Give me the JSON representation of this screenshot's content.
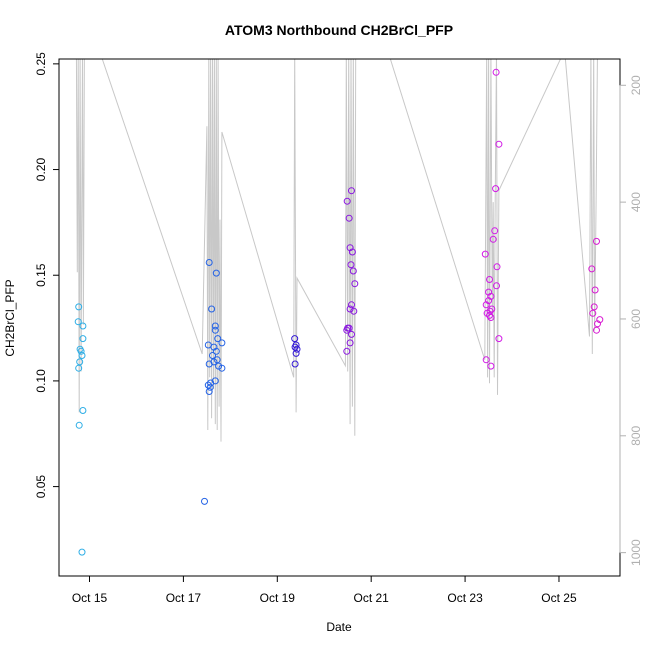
{
  "chart_data": {
    "type": "scatter",
    "title": "ATOM3 Northbound CH2BrCl_PFP",
    "xlabel": "Date",
    "ylabel": "CH2BrCl_PFP",
    "x_unit": "day of October",
    "xlim": [
      14.35,
      26.3
    ],
    "ylim": [
      0.0077,
      0.2523
    ],
    "x_ticks": [
      15,
      17,
      19,
      21,
      23,
      25
    ],
    "x_tick_labels": [
      "Oct 15",
      "Oct 17",
      "Oct 19",
      "Oct 21",
      "Oct 23",
      "Oct 25"
    ],
    "y_ticks": [
      0.05,
      0.1,
      0.15,
      0.2,
      0.25
    ],
    "y_tick_labels": [
      "0.05",
      "0.10",
      "0.15",
      "0.20",
      "0.25"
    ],
    "y2_ticks": [
      200,
      400,
      600,
      800,
      1000
    ],
    "y2_tick_labels": [
      "200",
      "400",
      "600",
      "800",
      "1000"
    ],
    "y2lim": [
      1040,
      155
    ],
    "y2_reversed": true,
    "grid": false,
    "colors": {
      "flight1": "#2eaee6",
      "flight2": "#2463e6",
      "flight3": "#3216d6",
      "flight4": "#8a16e0",
      "flight5": "#d21ae6",
      "flight6": "#d81ad2",
      "profile_line": "#c8c8c8",
      "right_axis": "#b0b0b0"
    },
    "series": [
      {
        "points": [
          [
            14.77,
            0.135
          ],
          [
            14.76,
            0.128
          ],
          [
            14.8,
            0.115
          ],
          [
            14.82,
            0.114
          ],
          [
            14.79,
            0.109
          ],
          [
            14.77,
            0.106
          ],
          [
            14.86,
            0.126
          ],
          [
            14.86,
            0.12
          ],
          [
            14.84,
            0.112
          ],
          [
            14.86,
            0.086
          ],
          [
            14.78,
            0.079
          ],
          [
            14.84,
            0.019
          ]
        ]
      },
      {
        "points": [
          [
            17.55,
            0.156
          ],
          [
            17.6,
            0.134
          ],
          [
            17.7,
            0.151
          ],
          [
            17.68,
            0.126
          ],
          [
            17.68,
            0.124
          ],
          [
            17.73,
            0.12
          ],
          [
            17.82,
            0.118
          ],
          [
            17.53,
            0.117
          ],
          [
            17.65,
            0.116
          ],
          [
            17.7,
            0.114
          ],
          [
            17.62,
            0.112
          ],
          [
            17.72,
            0.11
          ],
          [
            17.55,
            0.108
          ],
          [
            17.65,
            0.109
          ],
          [
            17.75,
            0.107
          ],
          [
            17.82,
            0.106
          ],
          [
            17.68,
            0.1
          ],
          [
            17.58,
            0.099
          ],
          [
            17.53,
            0.098
          ],
          [
            17.57,
            0.097
          ],
          [
            17.55,
            0.095
          ],
          [
            17.45,
            0.043
          ]
        ]
      },
      {
        "points": [
          [
            19.37,
            0.12
          ],
          [
            19.4,
            0.117
          ],
          [
            19.38,
            0.116
          ],
          [
            19.42,
            0.115
          ],
          [
            19.4,
            0.113
          ],
          [
            19.38,
            0.108
          ]
        ]
      },
      {
        "points": [
          [
            20.49,
            0.185
          ],
          [
            20.58,
            0.19
          ],
          [
            20.53,
            0.177
          ],
          [
            20.55,
            0.163
          ],
          [
            20.6,
            0.161
          ],
          [
            20.57,
            0.155
          ],
          [
            20.62,
            0.152
          ],
          [
            20.65,
            0.146
          ],
          [
            20.58,
            0.136
          ],
          [
            20.55,
            0.134
          ],
          [
            20.63,
            0.133
          ],
          [
            20.5,
            0.125
          ],
          [
            20.53,
            0.125
          ],
          [
            20.48,
            0.124
          ],
          [
            20.55,
            0.118
          ],
          [
            20.58,
            0.122
          ],
          [
            20.48,
            0.114
          ]
        ]
      },
      {
        "points": [
          [
            23.66,
            0.246
          ],
          [
            23.72,
            0.212
          ],
          [
            23.65,
            0.191
          ],
          [
            23.63,
            0.171
          ],
          [
            23.6,
            0.167
          ],
          [
            23.68,
            0.154
          ],
          [
            23.43,
            0.16
          ],
          [
            23.52,
            0.148
          ],
          [
            23.67,
            0.145
          ],
          [
            23.5,
            0.142
          ],
          [
            23.55,
            0.14
          ],
          [
            23.45,
            0.136
          ],
          [
            23.5,
            0.138
          ],
          [
            23.47,
            0.132
          ],
          [
            23.57,
            0.134
          ],
          [
            23.53,
            0.133
          ],
          [
            23.52,
            0.131
          ],
          [
            23.55,
            0.13
          ],
          [
            23.72,
            0.12
          ],
          [
            23.45,
            0.11
          ],
          [
            23.55,
            0.107
          ]
        ]
      },
      {
        "points": [
          [
            25.8,
            0.166
          ],
          [
            25.7,
            0.153
          ],
          [
            25.77,
            0.143
          ],
          [
            25.75,
            0.135
          ],
          [
            25.72,
            0.132
          ],
          [
            25.87,
            0.129
          ],
          [
            25.82,
            0.127
          ],
          [
            25.8,
            0.124
          ]
        ]
      }
    ],
    "profile_line_y2": [
      [
        14.72,
        140
      ],
      [
        14.74,
        520
      ],
      [
        14.76,
        140
      ],
      [
        14.78,
        760
      ],
      [
        14.8,
        140
      ],
      [
        14.82,
        690
      ],
      [
        14.85,
        140
      ],
      [
        14.87,
        610
      ],
      [
        14.89,
        140
      ],
      [
        15.25,
        150
      ],
      [
        17.4,
        660
      ],
      [
        17.5,
        270
      ],
      [
        17.52,
        790
      ],
      [
        17.54,
        140
      ],
      [
        17.56,
        700
      ],
      [
        17.58,
        140
      ],
      [
        17.6,
        770
      ],
      [
        17.62,
        140
      ],
      [
        17.64,
        720
      ],
      [
        17.66,
        140
      ],
      [
        17.68,
        780
      ],
      [
        17.7,
        140
      ],
      [
        17.72,
        790
      ],
      [
        17.74,
        150
      ],
      [
        17.76,
        750
      ],
      [
        17.78,
        430
      ],
      [
        17.8,
        810
      ],
      [
        17.82,
        280
      ],
      [
        19.35,
        700
      ],
      [
        19.37,
        140
      ],
      [
        19.4,
        760
      ],
      [
        19.42,
        530
      ],
      [
        20.45,
        680
      ],
      [
        20.47,
        140
      ],
      [
        20.5,
        690
      ],
      [
        20.52,
        140
      ],
      [
        20.55,
        780
      ],
      [
        20.57,
        140
      ],
      [
        20.6,
        750
      ],
      [
        20.62,
        140
      ],
      [
        20.65,
        800
      ],
      [
        20.67,
        140
      ],
      [
        21.35,
        140
      ],
      [
        23.42,
        670
      ],
      [
        23.46,
        140
      ],
      [
        23.48,
        700
      ],
      [
        23.5,
        140
      ],
      [
        23.52,
        710
      ],
      [
        23.55,
        140
      ],
      [
        23.58,
        600
      ],
      [
        23.6,
        400
      ],
      [
        23.62,
        700
      ],
      [
        23.64,
        420
      ],
      [
        23.67,
        140
      ],
      [
        23.69,
        730
      ],
      [
        23.72,
        380
      ],
      [
        25.12,
        140
      ],
      [
        25.65,
        630
      ],
      [
        25.68,
        140
      ],
      [
        25.71,
        660
      ],
      [
        25.74,
        140
      ],
      [
        25.76,
        620
      ],
      [
        25.79,
        400
      ],
      [
        25.82,
        140
      ]
    ]
  }
}
